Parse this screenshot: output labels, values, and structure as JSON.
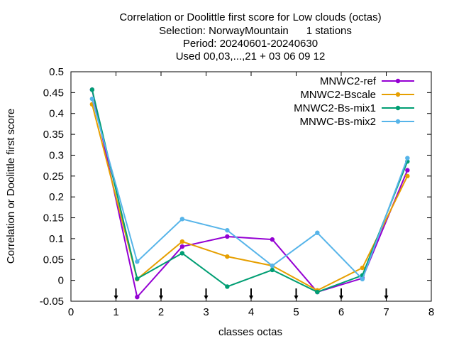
{
  "chart_data": {
    "type": "line",
    "title_lines": [
      "Correlation or Doolittle first score  for Low clouds (octas)",
      "Selection: NorwayMountain      1 stations",
      "Period: 20240601-20240630",
      "Used 00,03,...,21 + 03 06 09 12"
    ],
    "xlabel": "classes octas",
    "ylabel": "Correlation or Doolittle first score",
    "xlim": [
      0,
      8
    ],
    "ylim": [
      -0.05,
      0.5
    ],
    "x_ticks": [
      "0",
      "1",
      "2",
      "3",
      "4",
      "5",
      "6",
      "7",
      "8"
    ],
    "y_ticks": [
      "-0.05",
      "0",
      "0.05",
      "0.1",
      "0.15",
      "0.2",
      "0.25",
      "0.3",
      "0.35",
      "0.4",
      "0.45",
      "0.5"
    ],
    "x_arrow_marks": [
      1,
      2,
      3,
      4,
      5,
      6,
      7
    ],
    "grid": false,
    "legend_position": "top-right",
    "x": [
      0.47,
      1.47,
      2.47,
      3.47,
      4.47,
      5.47,
      6.47,
      7.47
    ],
    "series": [
      {
        "name": "MNWC2-ref",
        "color": "#9400d3",
        "values": [
          0.457,
          -0.04,
          0.081,
          0.105,
          0.098,
          -0.028,
          0.005,
          0.264
        ]
      },
      {
        "name": "MNWC2-Bscale",
        "color": "#e69f00",
        "values": [
          0.422,
          0.003,
          0.093,
          0.057,
          0.035,
          -0.024,
          0.03,
          0.25
        ]
      },
      {
        "name": "MNWC2-Bs-mix1",
        "color": "#009e73",
        "values": [
          0.457,
          0.004,
          0.065,
          -0.015,
          0.025,
          -0.028,
          0.012,
          0.285
        ]
      },
      {
        "name": "MNWC-Bs-mix2",
        "color": "#56b4e9",
        "values": [
          0.435,
          0.045,
          0.147,
          0.12,
          0.035,
          0.114,
          0.003,
          0.293
        ]
      }
    ]
  }
}
